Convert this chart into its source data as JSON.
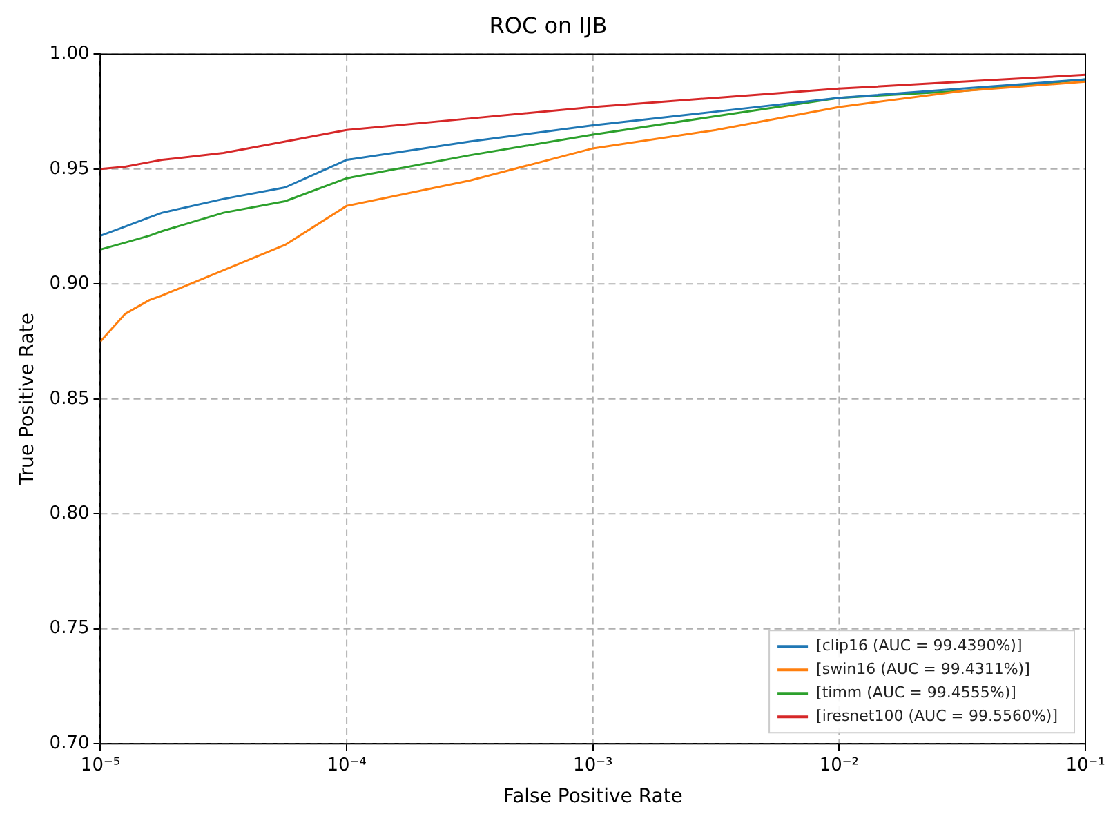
{
  "chart_data": {
    "type": "line",
    "title": "ROC on IJB",
    "xlabel": "False Positive Rate",
    "ylabel": "True Positive Rate",
    "log": "x",
    "grid": true,
    "legend": "bottom right",
    "marker": "none",
    "line_style": "solid",
    "x": [
      1e-05,
      1.26e-05,
      1.58e-05,
      1.78e-05,
      3.16e-05,
      5.62e-05,
      0.0001,
      0.000316,
      0.001,
      0.00316,
      0.01,
      0.0316,
      0.1
    ],
    "xlim": [
      1e-05,
      0.1
    ],
    "ylim": [
      0.7,
      1.0
    ],
    "xticks": [
      {
        "value": 1e-05,
        "label": "10⁻⁵"
      },
      {
        "value": 0.0001,
        "label": "10⁻⁴"
      },
      {
        "value": 0.001,
        "label": "10⁻³"
      },
      {
        "value": 0.01,
        "label": "10⁻²"
      },
      {
        "value": 0.1,
        "label": "10⁻¹"
      }
    ],
    "yticks": [
      {
        "value": 0.7,
        "label": "0.70"
      },
      {
        "value": 0.75,
        "label": "0.75"
      },
      {
        "value": 0.8,
        "label": "0.80"
      },
      {
        "value": 0.85,
        "label": "0.85"
      },
      {
        "value": 0.9,
        "label": "0.90"
      },
      {
        "value": 0.95,
        "label": "0.95"
      },
      {
        "value": 1.0,
        "label": "1.00"
      }
    ],
    "series": [
      {
        "name": "[clip16 (AUC = 99.4390%)]",
        "color": "#1f77b4",
        "values": [
          0.921,
          0.925,
          0.929,
          0.931,
          0.937,
          0.942,
          0.954,
          0.962,
          0.969,
          0.975,
          0.981,
          0.985,
          0.989
        ]
      },
      {
        "name": "[swin16 (AUC = 99.4311%)]",
        "color": "#ff7f0e",
        "values": [
          0.875,
          0.887,
          0.893,
          0.895,
          0.906,
          0.917,
          0.934,
          0.945,
          0.959,
          0.967,
          0.977,
          0.984,
          0.988
        ]
      },
      {
        "name": "[timm (AUC = 99.4555%)]",
        "color": "#2ca02c",
        "values": [
          0.915,
          0.918,
          0.921,
          0.923,
          0.931,
          0.936,
          0.946,
          0.956,
          0.965,
          0.973,
          0.981,
          0.984,
          0.989
        ]
      },
      {
        "name": "[iresnet100 (AUC = 99.5560%)]",
        "color": "#d62728",
        "values": [
          0.95,
          0.951,
          0.953,
          0.954,
          0.957,
          0.962,
          0.967,
          0.972,
          0.977,
          0.981,
          0.985,
          0.988,
          0.991
        ]
      }
    ]
  }
}
